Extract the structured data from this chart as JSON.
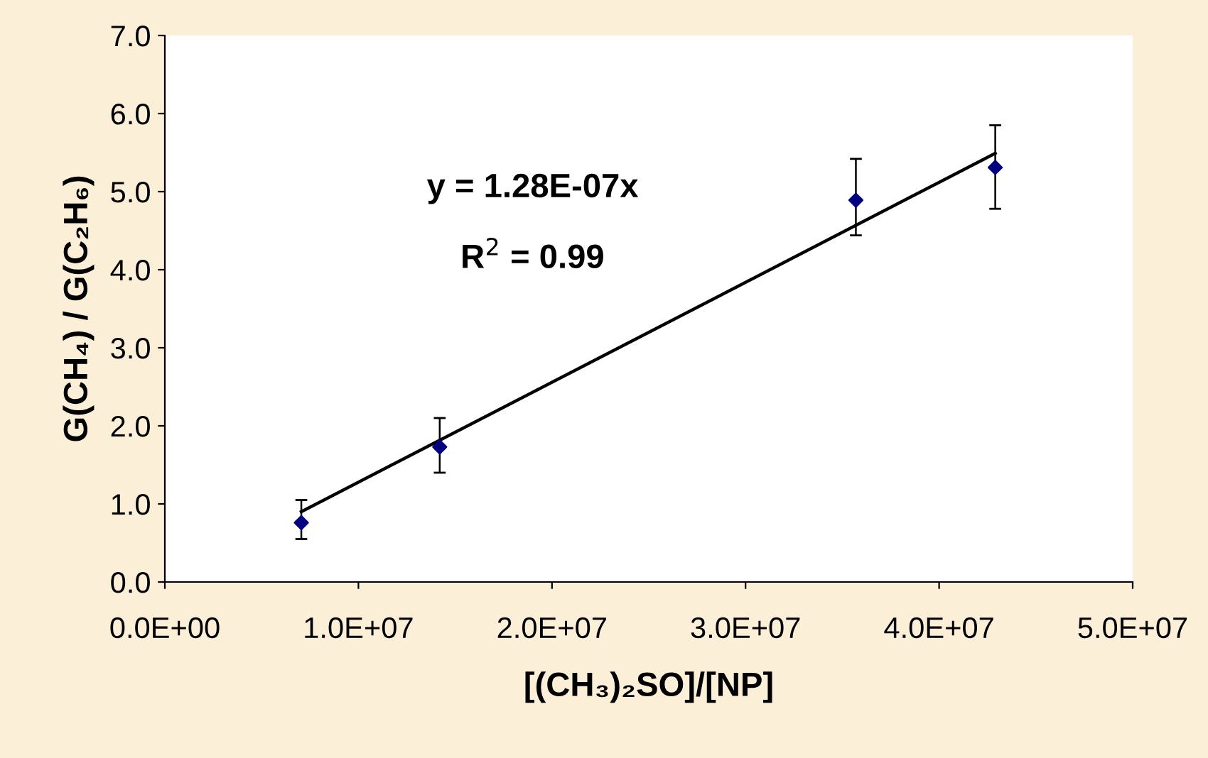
{
  "chart_data": {
    "type": "scatter",
    "xlabel": "[(CH₃)₂SO]/[NP]",
    "ylabel": "G(CH₄) / G(C₂H₆)",
    "annotations": [
      "y = 1.28E-07x",
      "R$^{2}$ = 0.99"
    ],
    "series": [
      {
        "color": "#000080",
        "marker": "diamond",
        "x": [
          7050000,
          14200000,
          35700000,
          42900000
        ],
        "values": [
          0.76,
          1.73,
          4.89,
          5.31
        ],
        "errors": [
          [
            0.55,
            1.05
          ],
          [
            1.4,
            2.1
          ],
          [
            4.44,
            5.42
          ],
          [
            4.78,
            5.85
          ]
        ]
      },
      {
        "type": "line",
        "color": "#000000",
        "marker": "none",
        "line_style": "solid",
        "x": [
          7050000,
          42900000
        ],
        "values": [
          0.9,
          5.49
        ]
      }
    ],
    "xlim": [
      0,
      50000000
    ],
    "ylim": [
      0,
      7
    ],
    "xticks": [
      {
        "value": 0,
        "label": "0.0E+00"
      },
      {
        "value": 10000000,
        "label": "1.0E+07"
      },
      {
        "value": 20000000,
        "label": "2.0E+07"
      },
      {
        "value": 30000000,
        "label": "3.0E+07"
      },
      {
        "value": 40000000,
        "label": "4.0E+07"
      },
      {
        "value": 50000000,
        "label": "5.0E+07"
      }
    ],
    "yticks": [
      {
        "value": 0,
        "label": "0.0"
      },
      {
        "value": 1,
        "label": "1.0"
      },
      {
        "value": 2,
        "label": "2.0"
      },
      {
        "value": 3,
        "label": "3.0"
      },
      {
        "value": 4,
        "label": "4.0"
      },
      {
        "value": 5,
        "label": "5.0"
      },
      {
        "value": 6,
        "label": "6.0"
      },
      {
        "value": 7,
        "label": "7.0"
      }
    ],
    "grid": false,
    "legend": false
  }
}
